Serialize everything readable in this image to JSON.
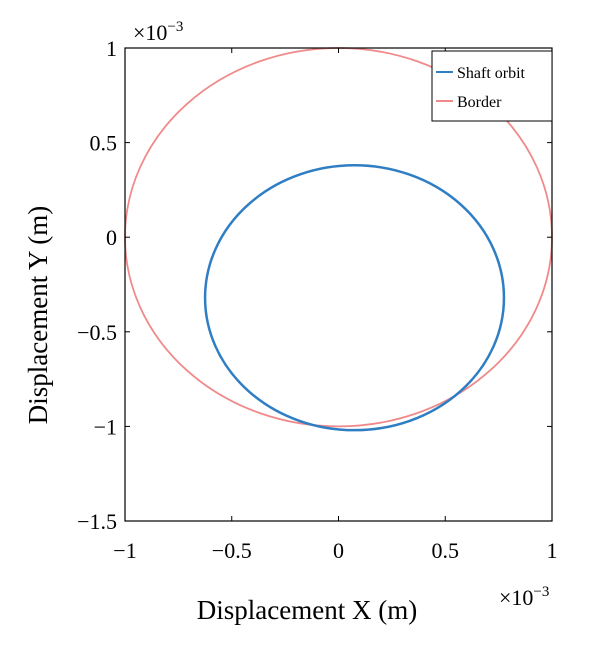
{
  "chart_data": {
    "type": "line",
    "xlabel": "Displacement X (m)",
    "ylabel": "Displacement Y (m)",
    "xlim": [
      -1,
      1
    ],
    "ylim": [
      -1.5,
      1
    ],
    "x_multiplier": {
      "base": "×10",
      "exponent": "−3"
    },
    "y_multiplier": {
      "base": "×10",
      "exponent": "−3"
    },
    "x_ticks": [
      -1,
      -0.5,
      0,
      0.5,
      1
    ],
    "x_tick_labels": [
      "−1",
      "−0.5",
      "0",
      "0.5",
      "1"
    ],
    "y_ticks": [
      -1.5,
      -1,
      -0.5,
      0,
      0.5,
      1
    ],
    "y_tick_labels": [
      "−1.5",
      "−1",
      "−0.5",
      "0",
      "0.5",
      "1"
    ],
    "legend_position": "top-right",
    "grid": false,
    "series": [
      {
        "name": "Shaft orbit",
        "color": "#2f7ec4",
        "shape": "ellipse",
        "center": [
          0.075,
          -0.32
        ],
        "radius_x": 0.7,
        "radius_y": 0.7
      },
      {
        "name": "Border",
        "color": "#f08a8a",
        "shape": "circle",
        "center": [
          0,
          0
        ],
        "radius_x": 1,
        "radius_y": 1
      }
    ]
  }
}
